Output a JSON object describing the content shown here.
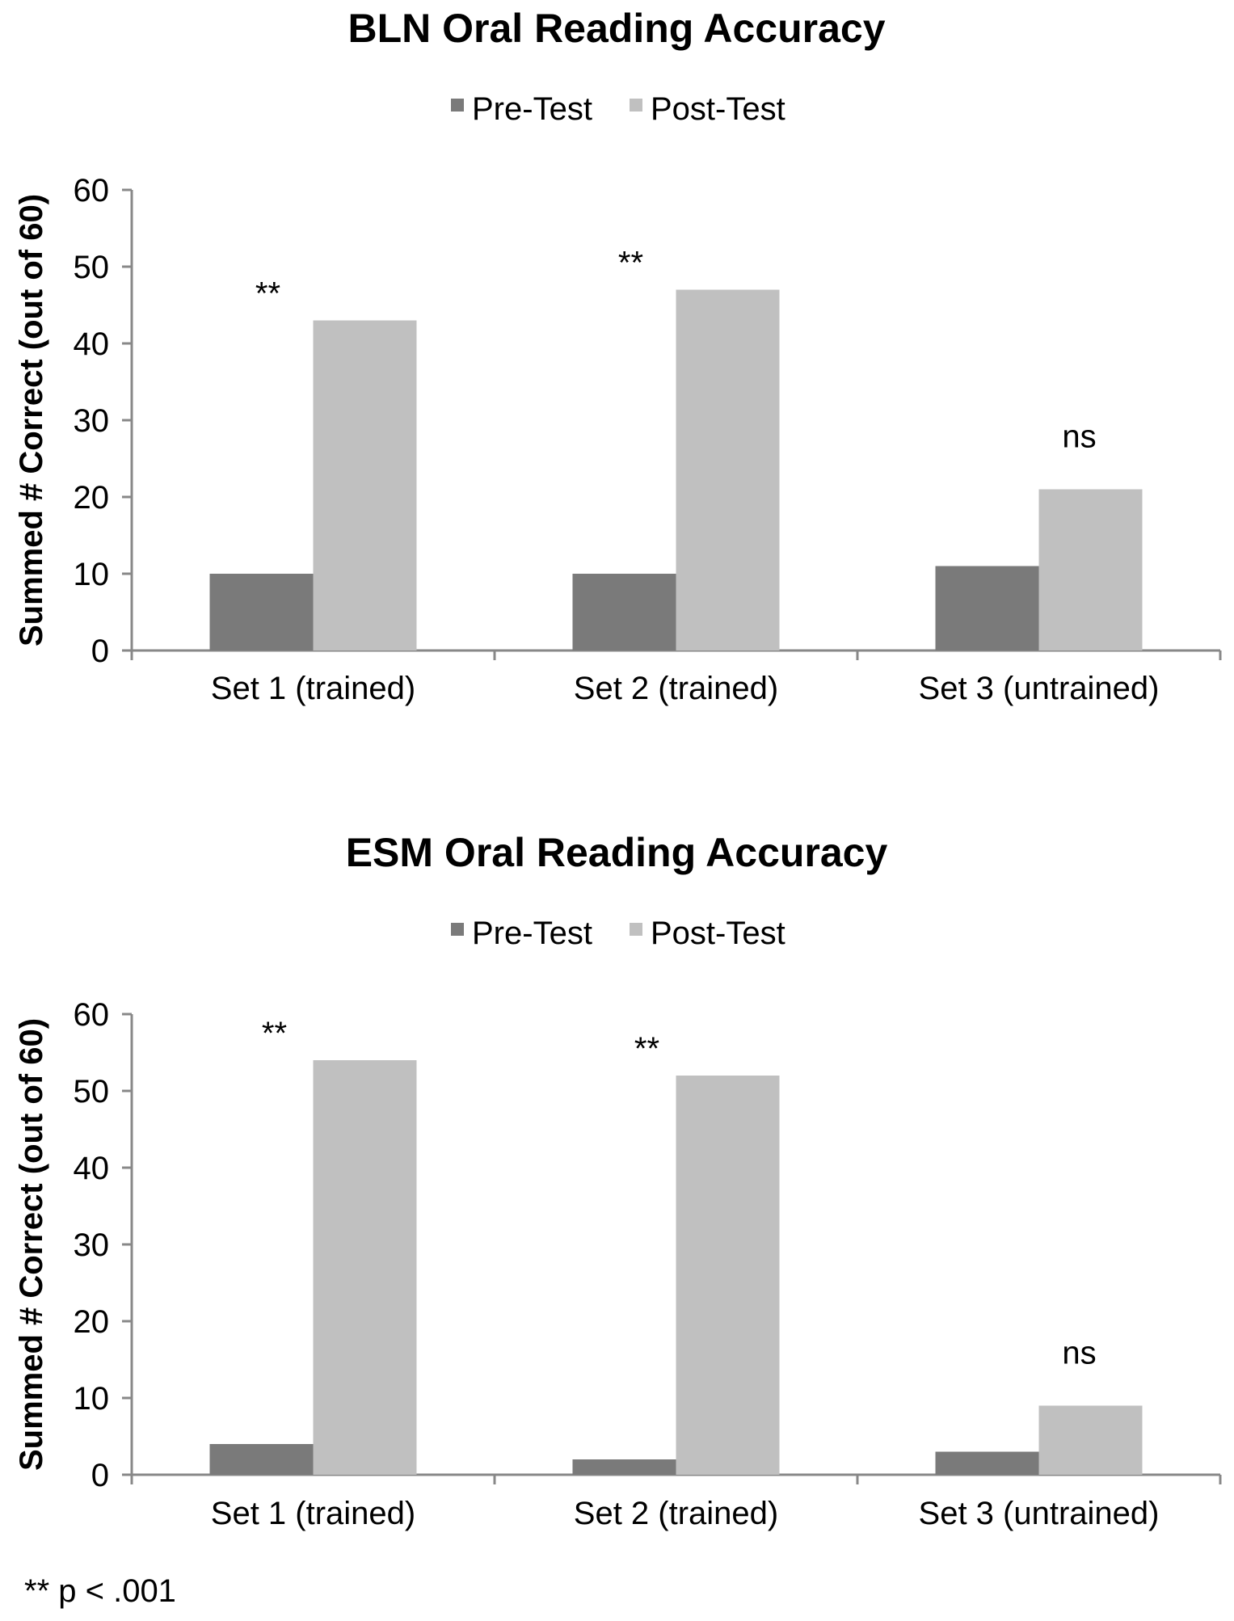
{
  "chart_data": [
    {
      "type": "bar",
      "title": "BLN Oral Reading Accuracy",
      "ylabel": "Summed # Correct (out of 60)",
      "xlabel": "",
      "categories": [
        "Set 1 (trained)",
        "Set 2 (trained)",
        "Set 3 (untrained)"
      ],
      "series": [
        {
          "name": "Pre-Test",
          "color": "#7a7a7a",
          "values": [
            10,
            10,
            11
          ]
        },
        {
          "name": "Post-Test",
          "color": "#c0c0c0",
          "values": [
            43,
            47,
            21
          ]
        }
      ],
      "ylim": [
        0,
        60
      ],
      "yticks": [
        0,
        10,
        20,
        30,
        40,
        50,
        60
      ],
      "annotations": [
        "**",
        "**",
        "ns"
      ],
      "legend": "top-center",
      "grid": false
    },
    {
      "type": "bar",
      "title": "ESM Oral Reading Accuracy",
      "ylabel": "Summed # Correct (out of 60)",
      "xlabel": "",
      "categories": [
        "Set 1 (trained)",
        "Set 2 (trained)",
        "Set 3 (untrained)"
      ],
      "series": [
        {
          "name": "Pre-Test",
          "color": "#7a7a7a",
          "values": [
            4,
            2,
            3
          ]
        },
        {
          "name": "Post-Test",
          "color": "#c0c0c0",
          "values": [
            54,
            52,
            9
          ]
        }
      ],
      "ylim": [
        0,
        60
      ],
      "yticks": [
        0,
        10,
        20,
        30,
        40,
        50,
        60
      ],
      "annotations": [
        "**",
        "**",
        "ns"
      ],
      "legend": "top-center",
      "grid": false
    }
  ],
  "footnote": "** p < .001"
}
